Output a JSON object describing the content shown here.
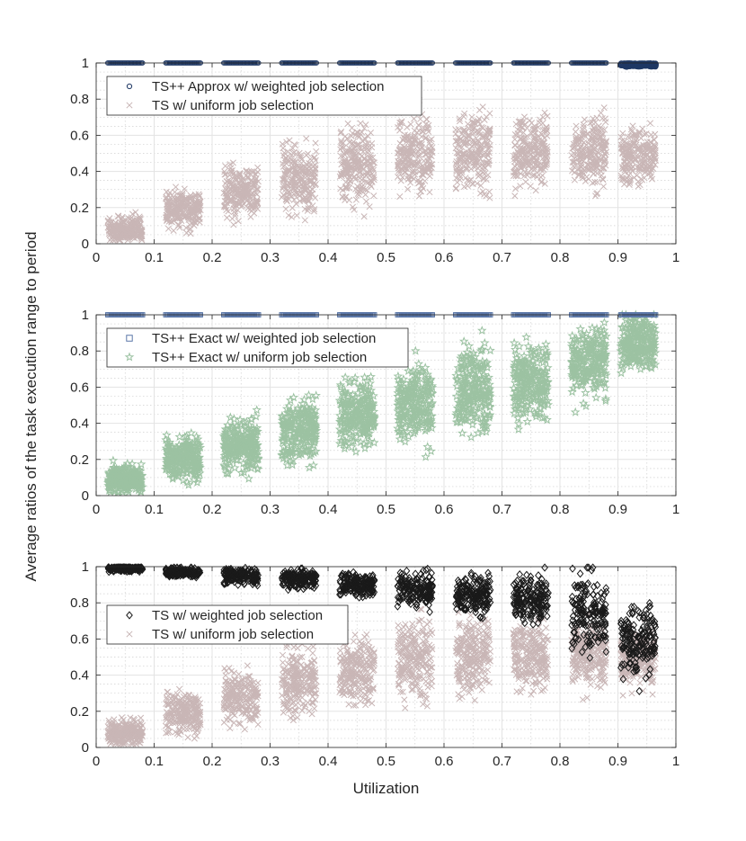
{
  "shared_ylabel": "Average ratios of the task execution range to period",
  "chart_data": [
    {
      "type": "scatter",
      "title": "",
      "xlabel": "",
      "ylabel": "",
      "xlim": [
        0,
        1
      ],
      "ylim": [
        0,
        1
      ],
      "grid": true,
      "xticks": [
        "0",
        "0.1",
        "0.2",
        "0.3",
        "0.4",
        "0.5",
        "0.6",
        "0.7",
        "0.8",
        "0.9",
        "1"
      ],
      "yticks": [
        "0",
        "0.2",
        "0.4",
        "0.6",
        "0.8",
        "1"
      ],
      "legend_position": "top-left",
      "x_bins": [
        {
          "center": 0.05,
          "top_mean": 1.0,
          "top_spread": 0.0,
          "bottom_mean": 0.08,
          "bottom_spread": 0.08
        },
        {
          "center": 0.15,
          "top_mean": 1.0,
          "top_spread": 0.0,
          "bottom_mean": 0.19,
          "bottom_spread": 0.12
        },
        {
          "center": 0.25,
          "top_mean": 1.0,
          "top_spread": 0.0,
          "bottom_mean": 0.28,
          "bottom_spread": 0.16
        },
        {
          "center": 0.35,
          "top_mean": 1.0,
          "top_spread": 0.0,
          "bottom_mean": 0.36,
          "bottom_spread": 0.2
        },
        {
          "center": 0.45,
          "top_mean": 1.0,
          "top_spread": 0.0,
          "bottom_mean": 0.43,
          "bottom_spread": 0.22
        },
        {
          "center": 0.55,
          "top_mean": 1.0,
          "top_spread": 0.0,
          "bottom_mean": 0.49,
          "bottom_spread": 0.24
        },
        {
          "center": 0.65,
          "top_mean": 1.0,
          "top_spread": 0.0,
          "bottom_mean": 0.51,
          "bottom_spread": 0.24
        },
        {
          "center": 0.75,
          "top_mean": 1.0,
          "top_spread": 0.0,
          "bottom_mean": 0.51,
          "bottom_spread": 0.22
        },
        {
          "center": 0.85,
          "top_mean": 1.0,
          "top_spread": 0.0,
          "bottom_mean": 0.51,
          "bottom_spread": 0.2
        },
        {
          "center": 0.935,
          "top_mean": 0.99,
          "top_spread": 0.01,
          "bottom_mean": 0.49,
          "bottom_spread": 0.17
        }
      ],
      "series": [
        {
          "name": "TS++ Approx w/ weighted job selection",
          "marker": "circle",
          "color": "#1f3864",
          "role": "top"
        },
        {
          "name": "TS w/ uniform job selection",
          "marker": "x",
          "color": "#c9b6b6",
          "role": "bottom"
        }
      ]
    },
    {
      "type": "scatter",
      "title": "",
      "xlabel": "",
      "ylabel": "",
      "xlim": [
        0,
        1
      ],
      "ylim": [
        0,
        1
      ],
      "grid": true,
      "xticks": [
        "0",
        "0.1",
        "0.2",
        "0.3",
        "0.4",
        "0.5",
        "0.6",
        "0.7",
        "0.8",
        "0.9",
        "1"
      ],
      "yticks": [
        "0",
        "0.2",
        "0.4",
        "0.6",
        "0.8",
        "1"
      ],
      "legend_position": "top-left",
      "x_bins": [
        {
          "center": 0.05,
          "top_mean": 1.0,
          "top_spread": 0.0,
          "bottom_mean": 0.09,
          "bottom_spread": 0.09
        },
        {
          "center": 0.15,
          "top_mean": 1.0,
          "top_spread": 0.0,
          "bottom_mean": 0.2,
          "bottom_spread": 0.13
        },
        {
          "center": 0.25,
          "top_mean": 1.0,
          "top_spread": 0.0,
          "bottom_mean": 0.28,
          "bottom_spread": 0.17
        },
        {
          "center": 0.35,
          "top_mean": 1.0,
          "top_spread": 0.0,
          "bottom_mean": 0.37,
          "bottom_spread": 0.2
        },
        {
          "center": 0.45,
          "top_mean": 1.0,
          "top_spread": 0.0,
          "bottom_mean": 0.45,
          "bottom_spread": 0.22
        },
        {
          "center": 0.55,
          "top_mean": 1.0,
          "top_spread": 0.0,
          "bottom_mean": 0.51,
          "bottom_spread": 0.24
        },
        {
          "center": 0.65,
          "top_mean": 1.0,
          "top_spread": 0.0,
          "bottom_mean": 0.58,
          "bottom_spread": 0.26
        },
        {
          "center": 0.75,
          "top_mean": 1.0,
          "top_spread": 0.0,
          "bottom_mean": 0.64,
          "bottom_spread": 0.25
        },
        {
          "center": 0.85,
          "top_mean": 1.0,
          "top_spread": 0.0,
          "bottom_mean": 0.74,
          "bottom_spread": 0.22
        },
        {
          "center": 0.935,
          "top_mean": 1.0,
          "top_spread": 0.0,
          "bottom_mean": 0.85,
          "bottom_spread": 0.17
        }
      ],
      "series": [
        {
          "name": "TS++ Exact w/ weighted job selection",
          "marker": "square",
          "color": "#5b77a8",
          "role": "top"
        },
        {
          "name": "TS++ Exact w/ uniform job selection",
          "marker": "star",
          "color": "#9cc2a2",
          "role": "bottom"
        }
      ]
    },
    {
      "type": "scatter",
      "title": "",
      "xlabel": "Utilization",
      "ylabel": "",
      "xlim": [
        0,
        1
      ],
      "ylim": [
        0,
        1
      ],
      "grid": true,
      "xticks": [
        "0",
        "0.1",
        "0.2",
        "0.3",
        "0.4",
        "0.5",
        "0.6",
        "0.7",
        "0.8",
        "0.9",
        "1"
      ],
      "yticks": [
        "0",
        "0.2",
        "0.4",
        "0.6",
        "0.8",
        "1"
      ],
      "legend_position": "left",
      "x_bins": [
        {
          "center": 0.05,
          "top_mean": 0.99,
          "top_spread": 0.02,
          "bottom_mean": 0.08,
          "bottom_spread": 0.08
        },
        {
          "center": 0.15,
          "top_mean": 0.97,
          "top_spread": 0.03,
          "bottom_mean": 0.19,
          "bottom_spread": 0.12
        },
        {
          "center": 0.25,
          "top_mean": 0.95,
          "top_spread": 0.05,
          "bottom_mean": 0.28,
          "bottom_spread": 0.16
        },
        {
          "center": 0.35,
          "top_mean": 0.93,
          "top_spread": 0.06,
          "bottom_mean": 0.36,
          "bottom_spread": 0.2
        },
        {
          "center": 0.45,
          "top_mean": 0.9,
          "top_spread": 0.08,
          "bottom_mean": 0.43,
          "bottom_spread": 0.22
        },
        {
          "center": 0.55,
          "top_mean": 0.87,
          "top_spread": 0.1,
          "bottom_mean": 0.49,
          "bottom_spread": 0.24
        },
        {
          "center": 0.65,
          "top_mean": 0.84,
          "top_spread": 0.13,
          "bottom_mean": 0.51,
          "bottom_spread": 0.24
        },
        {
          "center": 0.75,
          "top_mean": 0.82,
          "top_spread": 0.15,
          "bottom_mean": 0.51,
          "bottom_spread": 0.22
        },
        {
          "center": 0.85,
          "top_mean": 0.72,
          "top_spread": 0.25,
          "bottom_mean": 0.51,
          "bottom_spread": 0.2
        },
        {
          "center": 0.935,
          "top_mean": 0.6,
          "top_spread": 0.22,
          "bottom_mean": 0.49,
          "bottom_spread": 0.17
        }
      ],
      "series": [
        {
          "name": "TS w/ weighted job selection",
          "marker": "diamond",
          "color": "#1a1a1a",
          "role": "top"
        },
        {
          "name": "TS w/ uniform job selection",
          "marker": "x",
          "color": "#c9b6b6",
          "role": "bottom"
        }
      ]
    }
  ]
}
